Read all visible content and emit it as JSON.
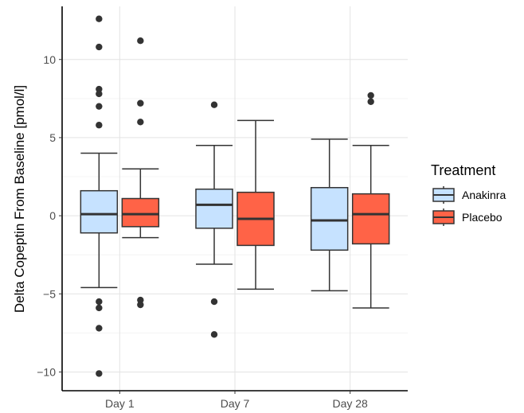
{
  "chart_data": {
    "type": "box",
    "ylabel": "Delta Copeptin From Baseline [pmol/l]",
    "xlabel": "",
    "categories": [
      "Day 1",
      "Day 7",
      "Day 28"
    ],
    "ylim": [
      -11.2,
      13.4
    ],
    "yticks": [
      -10,
      -5,
      0,
      5,
      10
    ],
    "legend": {
      "title": "Treatment",
      "position": "right",
      "entries": [
        "Anakinra",
        "Placebo"
      ]
    },
    "colors": {
      "Anakinra": "#c6e2ff",
      "Placebo": "#ff6347"
    },
    "series": [
      {
        "name": "Anakinra",
        "boxes": [
          {
            "category": "Day 1",
            "whisker_low": -4.6,
            "q1": -1.1,
            "median": 0.1,
            "q3": 1.6,
            "whisker_high": 4.0,
            "outliers": [
              12.6,
              10.8,
              8.1,
              7.8,
              7.0,
              5.8,
              -5.5,
              -5.9,
              -7.2,
              -10.1
            ]
          },
          {
            "category": "Day 7",
            "whisker_low": -3.1,
            "q1": -0.8,
            "median": 0.7,
            "q3": 1.7,
            "whisker_high": 4.5,
            "outliers": [
              7.1,
              -5.5,
              -7.6
            ]
          },
          {
            "category": "Day 28",
            "whisker_low": -4.8,
            "q1": -2.2,
            "median": -0.3,
            "q3": 1.8,
            "whisker_high": 4.9,
            "outliers": []
          }
        ]
      },
      {
        "name": "Placebo",
        "boxes": [
          {
            "category": "Day 1",
            "whisker_low": -1.4,
            "q1": -0.7,
            "median": 0.1,
            "q3": 1.1,
            "whisker_high": 3.0,
            "outliers": [
              11.2,
              7.2,
              6.0,
              -5.4,
              -5.7
            ]
          },
          {
            "category": "Day 7",
            "whisker_low": -4.7,
            "q1": -1.9,
            "median": -0.2,
            "q3": 1.5,
            "whisker_high": 6.1,
            "outliers": []
          },
          {
            "category": "Day 28",
            "whisker_low": -5.9,
            "q1": -1.8,
            "median": 0.1,
            "q3": 1.4,
            "whisker_high": 4.5,
            "outliers": [
              7.7,
              7.3
            ]
          }
        ]
      }
    ]
  }
}
